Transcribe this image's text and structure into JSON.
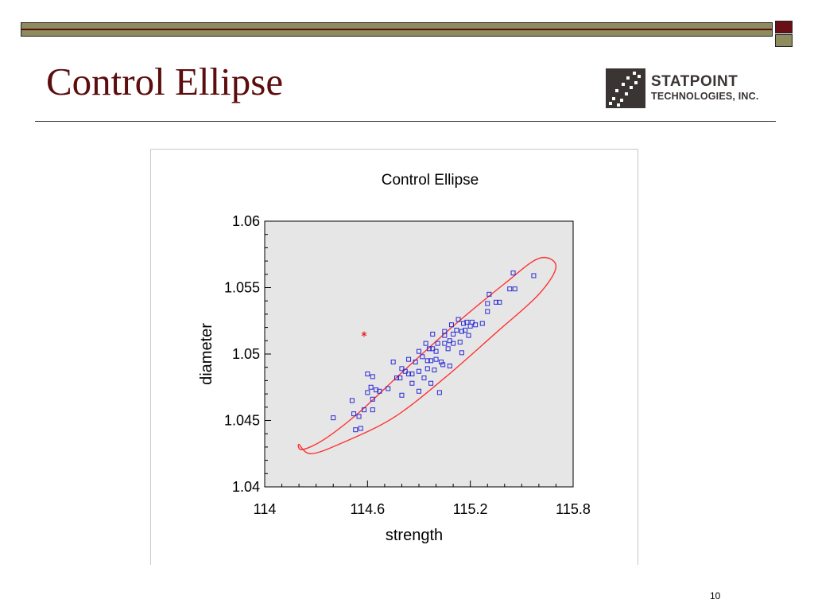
{
  "slide": {
    "title": "Control Ellipse",
    "page_number": "10",
    "colors": {
      "title": "#5c0d0d",
      "band": "#8e8c5e",
      "accent": "#6b0f16"
    }
  },
  "logo": {
    "line1": "STATPOINT",
    "line2": "TECHNOLOGIES, INC."
  },
  "chart_data": {
    "type": "scatter",
    "title": "Control Ellipse",
    "xlabel": "strength",
    "ylabel": "diameter",
    "xlim": [
      114,
      115.8
    ],
    "ylim": [
      1.04,
      1.06
    ],
    "xticks": [
      114,
      114.6,
      115.2,
      115.8
    ],
    "xtick_labels": [
      "114",
      "114.6",
      "115.2",
      "115.8"
    ],
    "yticks": [
      1.04,
      1.045,
      1.05,
      1.055,
      1.06
    ],
    "ytick_labels": [
      "1.04",
      "1.045",
      "1.05",
      "1.055",
      "1.06"
    ],
    "background": "#e6e6e6",
    "ellipse": {
      "color": "#ff3333",
      "points": [
        [
          114.22,
          1.0428
        ],
        [
          114.35,
          1.0436
        ],
        [
          114.55,
          1.0456
        ],
        [
          114.8,
          1.0486
        ],
        [
          115.1,
          1.0521
        ],
        [
          115.4,
          1.0553
        ],
        [
          115.6,
          1.0572
        ],
        [
          115.7,
          1.0566
        ],
        [
          115.6,
          1.0545
        ],
        [
          115.35,
          1.0516
        ],
        [
          115.05,
          1.0482
        ],
        [
          114.75,
          1.0452
        ],
        [
          114.45,
          1.0433
        ],
        [
          114.27,
          1.0425
        ],
        [
          114.2,
          1.0432
        ]
      ]
    },
    "series": [
      {
        "marker": "square",
        "color": "#2a2ad6",
        "points": [
          [
            114.4,
            1.0452
          ],
          [
            114.51,
            1.0465
          ],
          [
            114.52,
            1.0455
          ],
          [
            114.53,
            1.0443
          ],
          [
            114.56,
            1.0444
          ],
          [
            114.55,
            1.0453
          ],
          [
            114.58,
            1.0458
          ],
          [
            114.6,
            1.0471
          ],
          [
            114.62,
            1.0475
          ],
          [
            114.63,
            1.0466
          ],
          [
            114.63,
            1.0458
          ],
          [
            114.6,
            1.0485
          ],
          [
            114.63,
            1.0483
          ],
          [
            114.65,
            1.0473
          ],
          [
            114.67,
            1.0472
          ],
          [
            114.72,
            1.0474
          ],
          [
            114.75,
            1.0494
          ],
          [
            114.77,
            1.0482
          ],
          [
            114.79,
            1.0482
          ],
          [
            114.8,
            1.0489
          ],
          [
            114.8,
            1.0469
          ],
          [
            114.82,
            1.0487
          ],
          [
            114.84,
            1.0485
          ],
          [
            114.84,
            1.0496
          ],
          [
            114.86,
            1.0485
          ],
          [
            114.86,
            1.0478
          ],
          [
            114.88,
            1.0494
          ],
          [
            114.9,
            1.0502
          ],
          [
            114.9,
            1.0487
          ],
          [
            114.9,
            1.0472
          ],
          [
            114.92,
            1.0498
          ],
          [
            114.93,
            1.0482
          ],
          [
            114.94,
            1.0508
          ],
          [
            114.95,
            1.0489
          ],
          [
            114.95,
            1.0495
          ],
          [
            114.96,
            1.0504
          ],
          [
            114.97,
            1.0495
          ],
          [
            114.97,
            1.0478
          ],
          [
            114.98,
            1.0515
          ],
          [
            114.98,
            1.0504
          ],
          [
            114.99,
            1.0488
          ],
          [
            115.0,
            1.0496
          ],
          [
            115.0,
            1.0502
          ],
          [
            115.01,
            1.0508
          ],
          [
            115.02,
            1.0471
          ],
          [
            115.03,
            1.0494
          ],
          [
            115.04,
            1.0492
          ],
          [
            115.05,
            1.0508
          ],
          [
            115.05,
            1.0514
          ],
          [
            115.05,
            1.0517
          ],
          [
            115.07,
            1.0504
          ],
          [
            115.08,
            1.051
          ],
          [
            115.08,
            1.0491
          ],
          [
            115.09,
            1.0522
          ],
          [
            115.1,
            1.0515
          ],
          [
            115.1,
            1.0508
          ],
          [
            115.12,
            1.0518
          ],
          [
            115.13,
            1.0526
          ],
          [
            115.14,
            1.0509
          ],
          [
            115.15,
            1.0517
          ],
          [
            115.15,
            1.0501
          ],
          [
            115.16,
            1.0523
          ],
          [
            115.17,
            1.0518
          ],
          [
            115.18,
            1.0524
          ],
          [
            115.19,
            1.0514
          ],
          [
            115.2,
            1.0521
          ],
          [
            115.21,
            1.0524
          ],
          [
            115.23,
            1.0522
          ],
          [
            115.27,
            1.0523
          ],
          [
            115.3,
            1.0532
          ],
          [
            115.3,
            1.0538
          ],
          [
            115.31,
            1.0545
          ],
          [
            115.35,
            1.0539
          ],
          [
            115.37,
            1.0539
          ],
          [
            115.43,
            1.0549
          ],
          [
            115.46,
            1.0549
          ],
          [
            115.45,
            1.0561
          ],
          [
            115.57,
            1.0559
          ]
        ]
      },
      {
        "marker": "asterisk",
        "color": "#ee2222",
        "points": [
          [
            114.58,
            1.0515
          ]
        ]
      }
    ]
  }
}
